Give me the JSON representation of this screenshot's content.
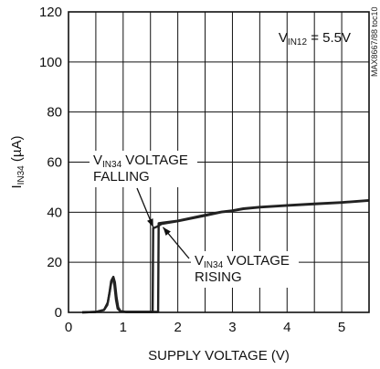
{
  "chart_data": {
    "type": "line",
    "xlabel": "SUPPLY VOLTAGE (V)",
    "ylabel": {
      "main": "I",
      "sub": "IN34",
      "tail": " (µA)"
    },
    "xlim": [
      0,
      5.5
    ],
    "ylim": [
      0,
      120
    ],
    "x_ticks": [
      0,
      1,
      2,
      3,
      4,
      5
    ],
    "y_ticks": [
      0,
      20,
      40,
      60,
      80,
      100,
      120
    ],
    "grid": true,
    "condition": {
      "main": "V",
      "sub": "IN12",
      "tail": " = 5.5V"
    },
    "figure_id": "MAX8667/88 toc10",
    "annotations": [
      {
        "id": "falling",
        "main": "V",
        "sub": "IN34",
        "line1_tail": " VOLTAGE",
        "line2": "FALLING",
        "target": [
          1.55,
          34
        ]
      },
      {
        "id": "rising",
        "main": "V",
        "sub": "IN34",
        "line1_tail": " VOLTAGE",
        "line2": "RISING",
        "target": [
          1.73,
          34
        ]
      }
    ],
    "series": [
      {
        "id": "falling",
        "points": [
          [
            0.25,
            0
          ],
          [
            0.5,
            0.2
          ],
          [
            0.65,
            1
          ],
          [
            0.72,
            4
          ],
          [
            0.76,
            9
          ],
          [
            0.79,
            13
          ],
          [
            0.82,
            14.2
          ],
          [
            0.85,
            12
          ],
          [
            0.88,
            6
          ],
          [
            0.91,
            2
          ],
          [
            0.95,
            0.5
          ],
          [
            1.05,
            0.2
          ],
          [
            1.3,
            0.2
          ],
          [
            1.54,
            0.2
          ],
          [
            1.55,
            33.6
          ],
          [
            1.62,
            34.2
          ],
          [
            1.7,
            35.3
          ],
          [
            2.0,
            36.4
          ],
          [
            2.5,
            38.6
          ],
          [
            2.8,
            40
          ],
          [
            3.0,
            40.5
          ],
          [
            3.2,
            41.3
          ],
          [
            3.5,
            41.9
          ],
          [
            4.0,
            42.6
          ],
          [
            4.5,
            43.2
          ],
          [
            5.0,
            43.8
          ],
          [
            5.5,
            44.6
          ]
        ]
      },
      {
        "id": "rising",
        "points": [
          [
            0.25,
            0
          ],
          [
            0.5,
            0.2
          ],
          [
            0.65,
            1
          ],
          [
            0.71,
            3
          ],
          [
            0.75,
            8
          ],
          [
            0.78,
            12.5
          ],
          [
            0.81,
            13.5
          ],
          [
            0.84,
            11
          ],
          [
            0.87,
            5
          ],
          [
            0.9,
            1.5
          ],
          [
            0.95,
            0.4
          ],
          [
            1.05,
            0.2
          ],
          [
            1.3,
            0.2
          ],
          [
            1.64,
            0.2
          ],
          [
            1.65,
            35.6
          ],
          [
            1.72,
            35.8
          ],
          [
            2.0,
            36.6
          ],
          [
            2.5,
            38.9
          ],
          [
            2.8,
            40.2
          ],
          [
            3.0,
            40.7
          ],
          [
            3.2,
            41.5
          ],
          [
            3.5,
            42.1
          ],
          [
            4.0,
            42.8
          ],
          [
            4.5,
            43.4
          ],
          [
            5.0,
            44.0
          ],
          [
            5.5,
            44.8
          ]
        ]
      }
    ]
  }
}
